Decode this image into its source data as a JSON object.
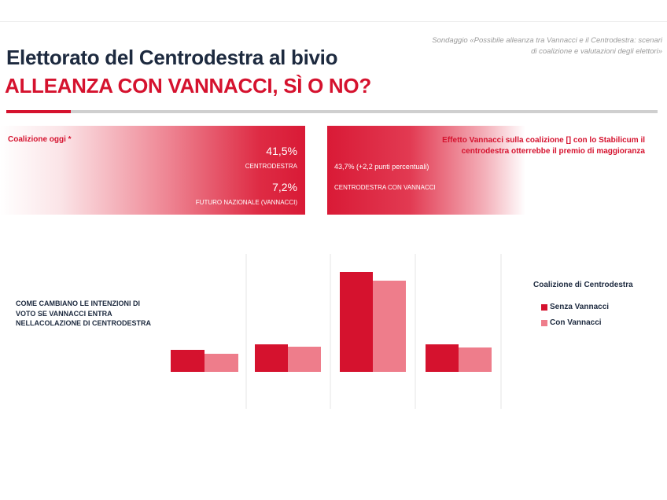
{
  "header": {
    "source": "Sondaggio «Possibile alleanza tra Vannacci e il Centrodestra: scenari di coalizione e valutazioni degli elettori»",
    "title_line1": "Elettorato del Centrodestra al bivio",
    "title_line2": "ALLEANZA CON VANNACCI, SÌ O NO?"
  },
  "left_panel": {
    "label": "Coalizione oggi *",
    "value1": "41,5%",
    "label1": "CENTRODESTRA",
    "value2": "7,2%",
    "label2": "FUTURO NAZIONALE (VANNACCI)"
  },
  "right_panel": {
    "value": "43,7% (+2,2 punti percentuali)",
    "label": "CENTRODESTRA CON VANNACCI",
    "effect_text": "Effetto Vannacci sulla coalizione [] con lo Stabilicum il centrodestra otterrebbe il premio di maggioranza"
  },
  "chart_text": "COME CAMBIANO LE INTENZIONI DI VOTO SE VANNACCI ENTRA NELLACOLAZIONE DI CENTRODESTRA",
  "legend": {
    "title": "Coalizione di Centrodestra",
    "items": [
      "Senza Vannacci",
      "Con Vannacci"
    ]
  },
  "colors": {
    "dark_red": "#d5122e",
    "light_red": "#ee7d8b",
    "navy": "#1d2a3f"
  },
  "chart_data": {
    "type": "bar",
    "categories": [
      "",
      "",
      "",
      ""
    ],
    "series": [
      {
        "name": "Senza Vannacci",
        "values": [
          28,
          35,
          127,
          35
        ]
      },
      {
        "name": "Con Vannacci",
        "values": [
          23,
          32,
          116,
          31
        ]
      }
    ],
    "gridlines": "vertical separators"
  }
}
